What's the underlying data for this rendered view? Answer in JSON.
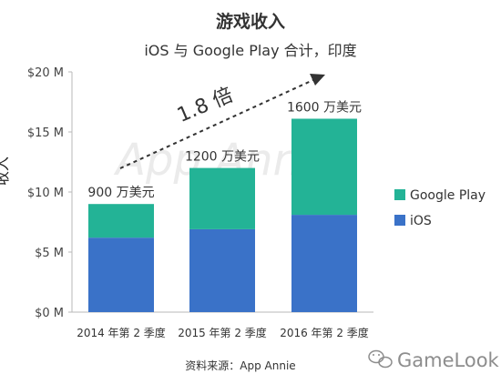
{
  "chart_data": {
    "type": "bar",
    "stacked": true,
    "title": "游戏收入",
    "subtitle": "iOS 与 Google Play 合计，印度",
    "ylabel": "收入",
    "ylim": [
      0,
      20
    ],
    "yticks": [
      "$0 M",
      "$5 M",
      "$10 M",
      "$15 M",
      "$20 M"
    ],
    "ytick_values": [
      0,
      5,
      10,
      15,
      20
    ],
    "categories": [
      "2014 年第 2 季度",
      "2015 年第 2 季度",
      "2016 年第 2 季度"
    ],
    "series": [
      {
        "name": "iOS",
        "values": [
          6.2,
          6.9,
          8.1
        ],
        "color": "#3a72c8"
      },
      {
        "name": "Google Play",
        "values": [
          2.8,
          5.1,
          8.0
        ],
        "color": "#23b396"
      }
    ],
    "totals_labels": [
      "900 万美元",
      "1200 万美元",
      "1600 万美元"
    ],
    "growth_label": "1.8 倍",
    "legend": {
      "placement": "right",
      "order": [
        "Google Play",
        "iOS"
      ]
    },
    "grid": false
  },
  "source": "资料来源：App Annie",
  "watermark": "App Annie",
  "brand": {
    "name": "GameLook",
    "icon": "wechat-icon"
  }
}
